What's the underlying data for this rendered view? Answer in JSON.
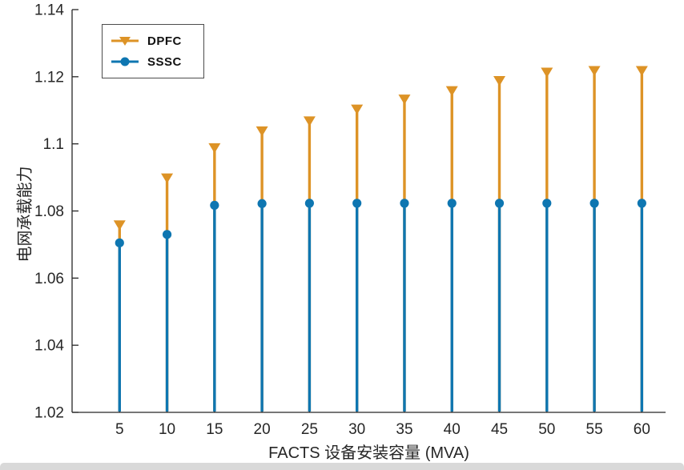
{
  "figure": {
    "background": "#ffffff"
  },
  "chart_data": {
    "type": "stem",
    "title": "",
    "xlabel": "FACTS 设备安装容量 (MVA)",
    "ylabel": "电网承载能力",
    "x": [
      5,
      10,
      15,
      20,
      25,
      30,
      35,
      40,
      45,
      50,
      55,
      60
    ],
    "series": [
      {
        "name": "DPFC",
        "marker": "triangle-down",
        "color": "#dd9326",
        "values": [
          1.076,
          1.09,
          1.099,
          1.104,
          1.107,
          1.1105,
          1.1135,
          1.116,
          1.119,
          1.1215,
          1.122,
          1.122
        ]
      },
      {
        "name": "SSSC",
        "marker": "circle",
        "color": "#0e76b1",
        "values": [
          1.0705,
          1.073,
          1.0817,
          1.0822,
          1.0823,
          1.0823,
          1.0823,
          1.0823,
          1.0823,
          1.0823,
          1.0823,
          1.0823
        ]
      }
    ],
    "xlim": [
      0,
      62.5
    ],
    "ylim": [
      1.02,
      1.14
    ],
    "baseline": 1.02,
    "xticks": [
      5,
      10,
      15,
      20,
      25,
      30,
      35,
      40,
      45,
      50,
      55,
      60
    ],
    "xtick_labels": [
      "5",
      "10",
      "15",
      "20",
      "25",
      "30",
      "35",
      "40",
      "45",
      "50",
      "55",
      "60"
    ],
    "yticks": [
      1.02,
      1.04,
      1.06,
      1.08,
      1.1,
      1.12,
      1.14
    ],
    "ytick_labels": [
      "1.02",
      "1.04",
      "1.06",
      "1.08",
      "1.1",
      "1.12",
      "1.14"
    ],
    "grid": false,
    "legend_position": "top-left",
    "axis_color": "#262626"
  }
}
